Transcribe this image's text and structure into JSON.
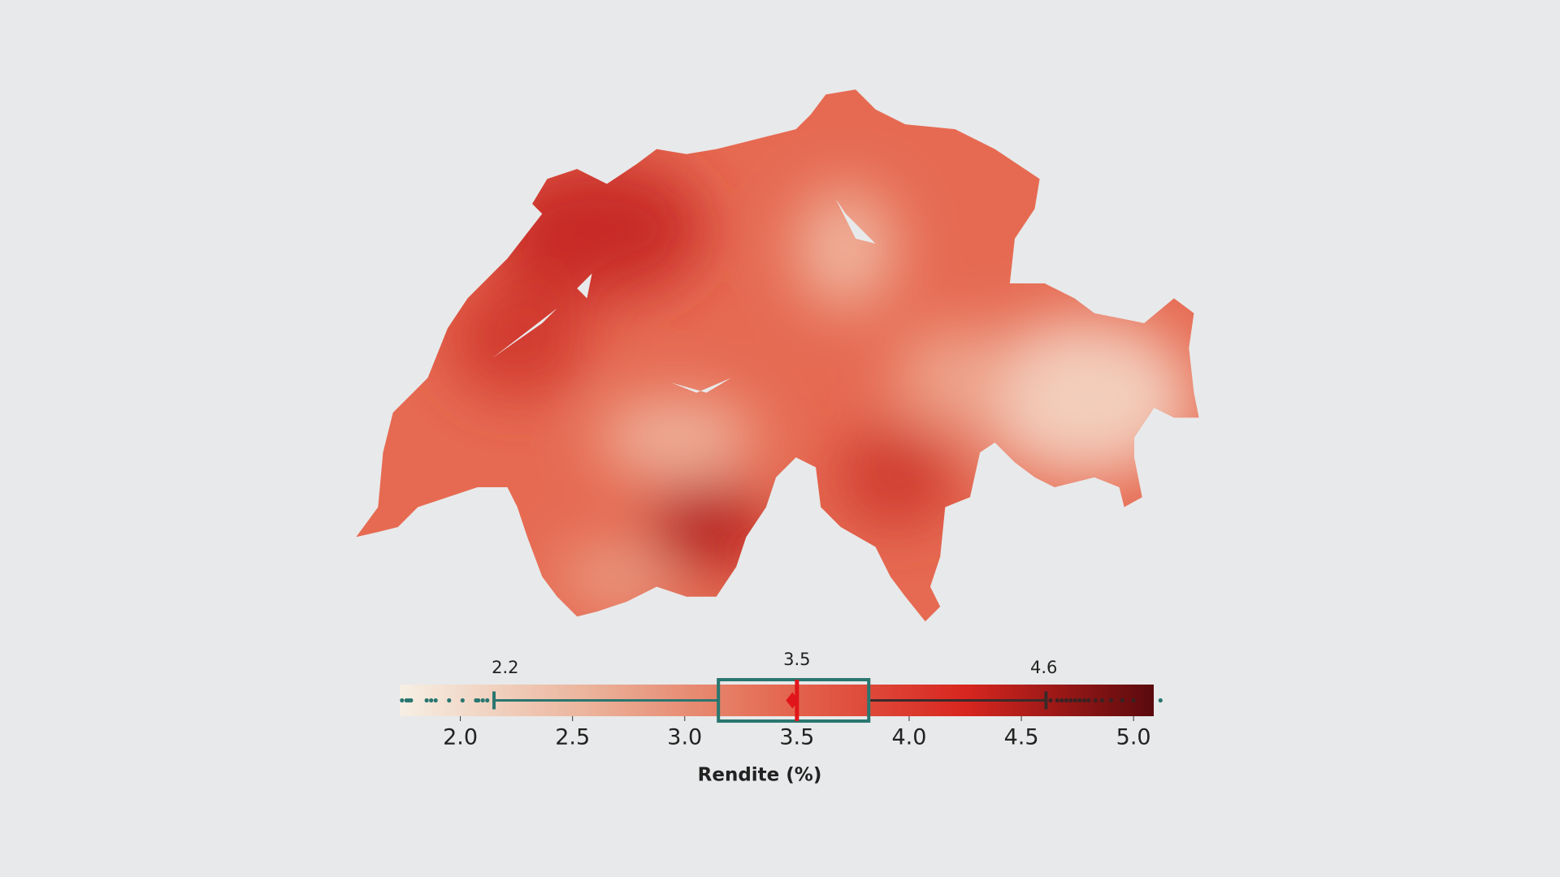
{
  "chart_data": {
    "type": "boxplot",
    "xlabel": "Rendite (%)",
    "xlim": [
      1.73,
      5.09
    ],
    "xticks": [
      {
        "value": 2,
        "label": "2.0"
      },
      {
        "value": 2.5,
        "label": "2.5"
      },
      {
        "value": 3,
        "label": "3.0"
      },
      {
        "value": 3.5,
        "label": "3.5"
      },
      {
        "value": 4,
        "label": "4.0"
      },
      {
        "value": 4.5,
        "label": "4.5"
      },
      {
        "value": 5,
        "label": "5.0"
      }
    ],
    "colormap": [
      "#f6efe4",
      "#ebb39b",
      "#e46a52",
      "#d8261f",
      "#5a0a0e"
    ],
    "box": {
      "color": "#2a7670",
      "mean_color": "#e0161b",
      "whisker_low": 2.15,
      "q1": 3.15,
      "median": 3.5,
      "mean": 3.48,
      "q3": 3.82,
      "whisker_high": 4.61
    },
    "annotations": [
      {
        "value": 2.2,
        "label": "2.2"
      },
      {
        "value": 3.5,
        "label": "3.5"
      },
      {
        "value": 4.6,
        "label": "4.6"
      }
    ],
    "outliers": [
      1.74,
      1.76,
      1.77,
      1.78,
      1.85,
      1.87,
      1.89,
      1.95,
      2.01,
      2.07,
      2.08,
      2.1,
      2.12,
      4.63,
      4.66,
      4.68,
      4.7,
      4.72,
      4.74,
      4.76,
      4.78,
      4.8,
      4.83,
      4.86,
      4.9,
      4.95,
      5.0,
      5.12
    ]
  }
}
